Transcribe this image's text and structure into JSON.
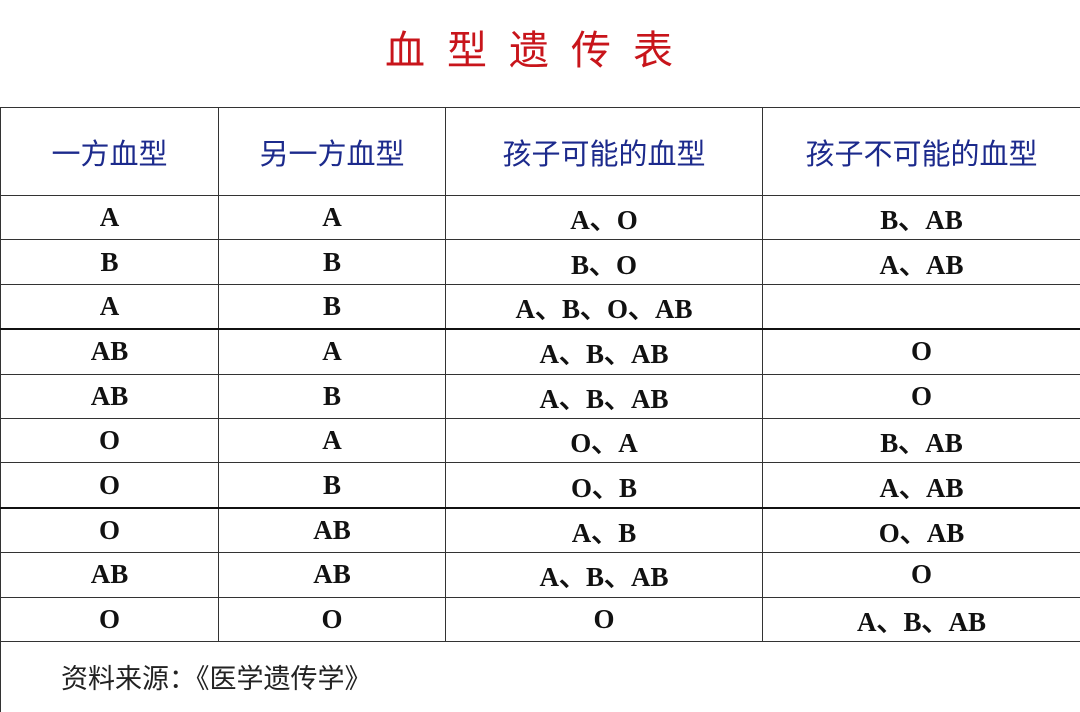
{
  "title": "血型遗传表",
  "table": {
    "headers": [
      "一方血型",
      "另一方血型",
      "孩子可能的血型",
      "孩子不可能的血型"
    ],
    "rows": [
      [
        "A",
        "A",
        "A、O",
        "B、AB"
      ],
      [
        "B",
        "B",
        "B、O",
        "A、AB"
      ],
      [
        "A",
        "B",
        "A、B、O、AB",
        ""
      ],
      [
        "AB",
        "A",
        "A、B、AB",
        "O"
      ],
      [
        "AB",
        "B",
        "A、B、AB",
        "O"
      ],
      [
        "O",
        "A",
        "O、A",
        "B、AB"
      ],
      [
        "O",
        "B",
        "O、B",
        "A、AB"
      ],
      [
        "O",
        "AB",
        "A、B",
        "O、AB"
      ],
      [
        "AB",
        "AB",
        "A、B、AB",
        "O"
      ],
      [
        "O",
        "O",
        "O",
        "A、B、AB"
      ]
    ]
  },
  "footer": {
    "source": "资料来源：《医学遗传学》"
  },
  "colors": {
    "title": "#c8151b",
    "header_text": "#1c2a8c"
  }
}
